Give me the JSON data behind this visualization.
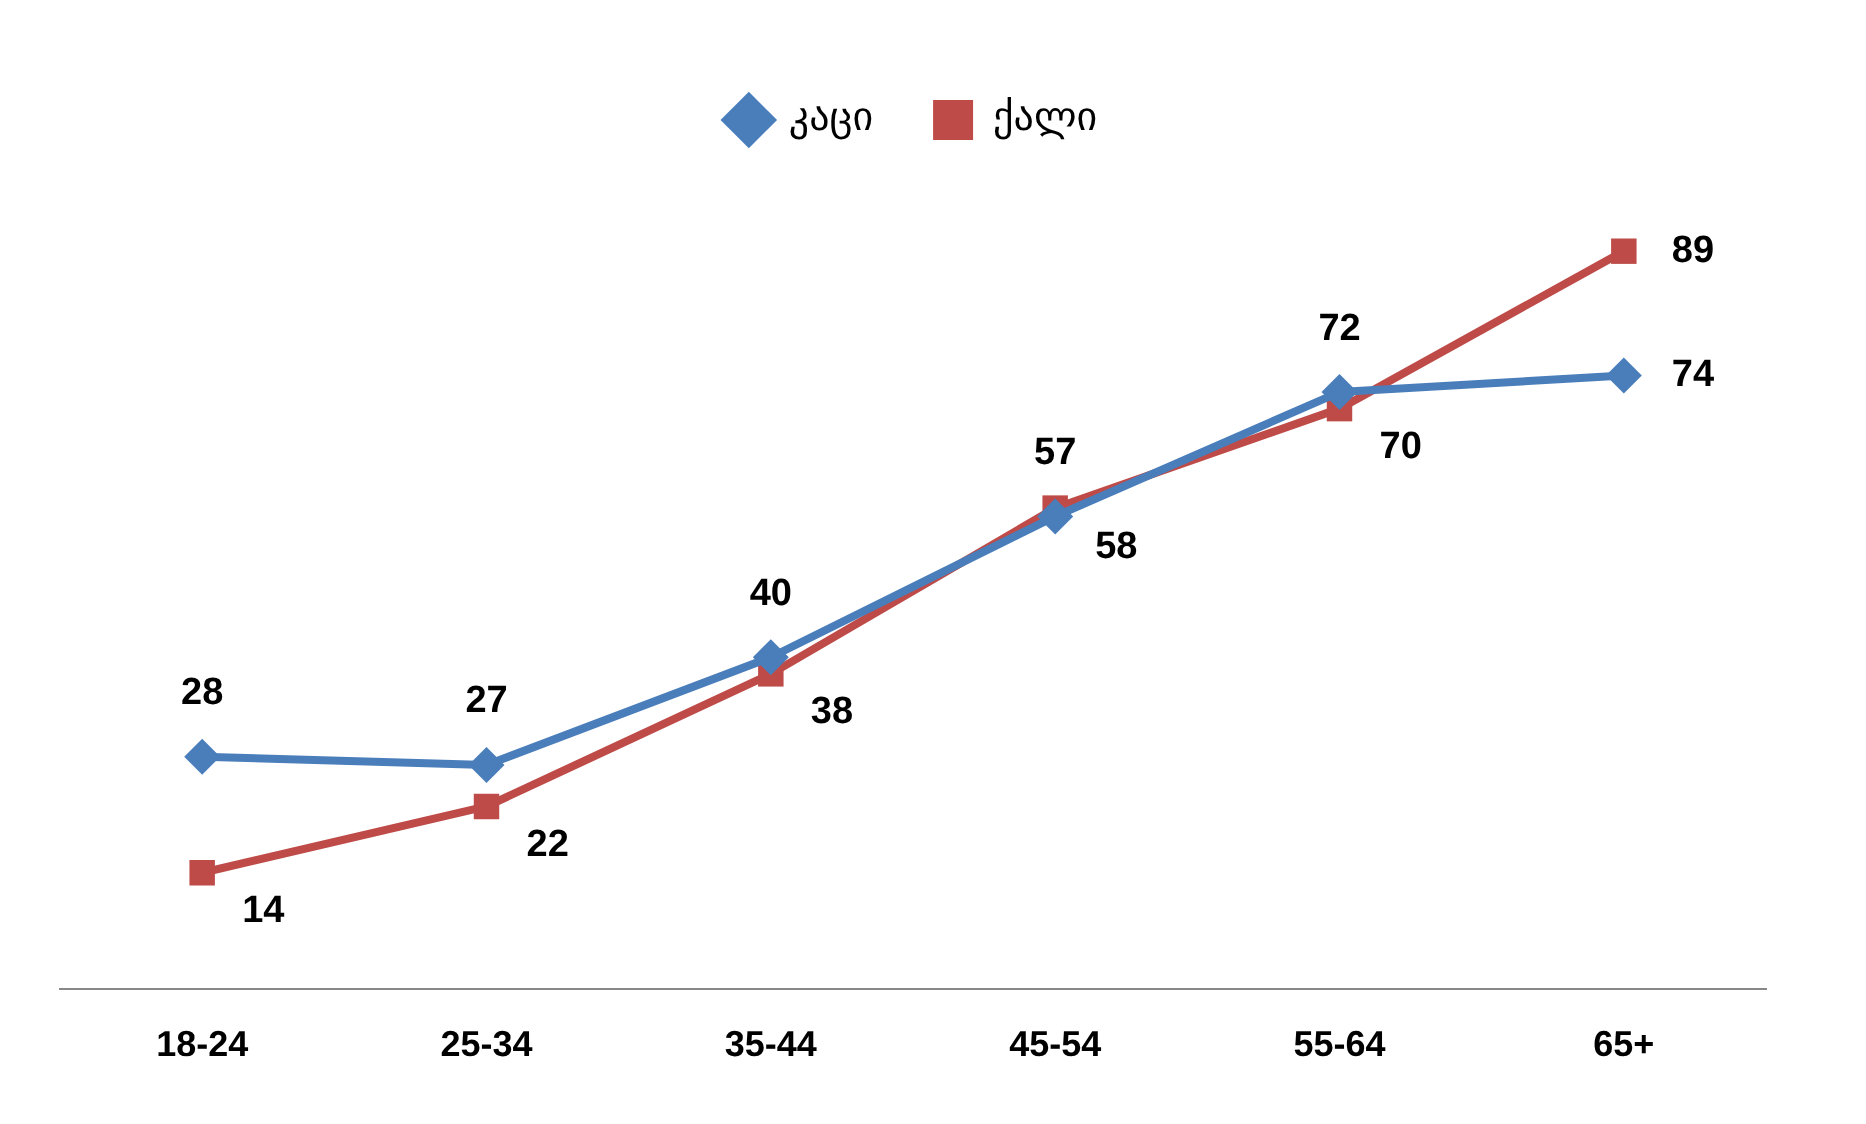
{
  "chart_data": {
    "type": "line",
    "categories": [
      "18-24",
      "25-34",
      "35-44",
      "45-54",
      "55-64",
      "65+"
    ],
    "series": [
      {
        "name": "კაცი",
        "color": "#4a7ebb",
        "marker": "diamond",
        "values": [
          28,
          27,
          40,
          57,
          72,
          74
        ]
      },
      {
        "name": "ქალი",
        "color": "#be4b48",
        "marker": "square",
        "values": [
          14,
          22,
          38,
          58,
          70,
          89
        ]
      }
    ],
    "data_labels": true,
    "legend": "top",
    "grid": false,
    "tick_labels": "x"
  }
}
